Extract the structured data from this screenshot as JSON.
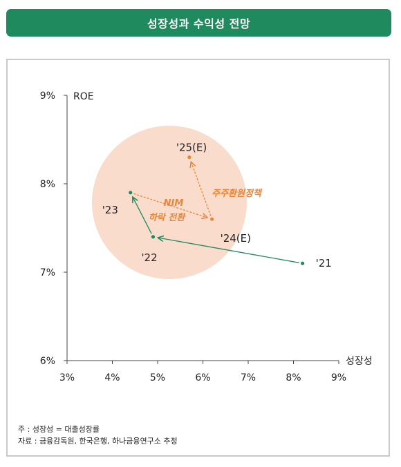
{
  "header": {
    "title": "성장성과 수익성 전망"
  },
  "chart_data": {
    "type": "scatter",
    "xlabel": "성장성",
    "ylabel": "ROE",
    "xlim": [
      3,
      9
    ],
    "ylim": [
      6,
      9
    ],
    "x_ticks": [
      "3%",
      "4%",
      "5%",
      "6%",
      "7%",
      "8%",
      "9%"
    ],
    "y_ticks": [
      "6%",
      "7%",
      "8%",
      "9%"
    ],
    "points": [
      {
        "label": "'21",
        "x": 8.2,
        "y": 7.1,
        "color": "#1e8a5e"
      },
      {
        "label": "'22",
        "x": 4.9,
        "y": 7.4,
        "color": "#1e8a5e"
      },
      {
        "label": "'23",
        "x": 4.4,
        "y": 7.9,
        "color": "#1e8a5e"
      },
      {
        "label": "'24(E)",
        "x": 6.2,
        "y": 7.6,
        "color": "#e8873a"
      },
      {
        "label": "'25(E)",
        "x": 5.7,
        "y": 8.3,
        "color": "#e8873a"
      }
    ],
    "annotations": [
      {
        "text": "NIM",
        "color": "#e8873a"
      },
      {
        "text": "하락 전환",
        "color": "#e8873a"
      },
      {
        "text": "주주환원정책",
        "color": "#e8873a"
      }
    ],
    "colors": {
      "actual": "#1e8a5e",
      "forecast": "#e8873a",
      "highlight": "#f9dccb"
    }
  },
  "notes": {
    "line1": "주 : 성장성 = 대출성장률",
    "line2": "자료 : 금융감독원, 한국은행, 하나금융연구소 추정"
  }
}
